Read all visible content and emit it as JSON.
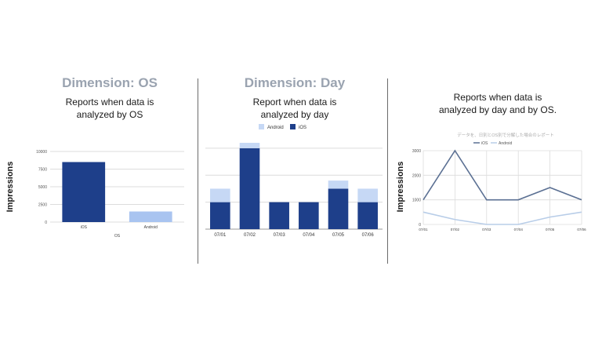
{
  "panels": [
    {
      "heading": "Dimension: OS",
      "subtitle_line1": "Reports when data is",
      "subtitle_line2": "analyzed by OS"
    },
    {
      "heading": "Dimension: Day",
      "subtitle_line1": "Report when data is",
      "subtitle_line2": "analyzed by day"
    },
    {
      "heading": "",
      "subtitle_line1": "Reports when data is",
      "subtitle_line2": "analyzed by day and by OS."
    }
  ],
  "y_axis_label": "Impressions",
  "colors": {
    "ios_dark": "#1e3f8a",
    "android_light": "#a9c4f0",
    "android_pale": "#c6d8f5",
    "line_ios": "#5b7093",
    "line_android": "#b8cde8",
    "grid": "#dcdcdc",
    "heading": "#9aa3b0"
  },
  "chart_data": [
    {
      "type": "bar",
      "title": "",
      "categories": [
        "iOS",
        "Android"
      ],
      "values": [
        8500,
        1500
      ],
      "bar_colors": [
        "#1e3f8a",
        "#a9c4f0"
      ],
      "xlabel": "OS",
      "ylabel": "Impressions",
      "yticks": [
        0,
        2500,
        5000,
        7500,
        10000
      ],
      "ylim": [
        0,
        10000
      ],
      "grid": true
    },
    {
      "type": "bar",
      "stacked": true,
      "categories": [
        "07/01",
        "07/02",
        "07/03",
        "07/04",
        "07/05",
        "07/06"
      ],
      "series": [
        {
          "name": "iOS",
          "values": [
            1000,
            3000,
            1000,
            1000,
            1500,
            1000
          ],
          "color": "#1e3f8a"
        },
        {
          "name": "Android",
          "values": [
            500,
            200,
            0,
            0,
            300,
            500
          ],
          "color": "#c6d8f5"
        }
      ],
      "legend": [
        "Android",
        "iOS"
      ],
      "legend_position": "top",
      "ylabel": "",
      "ylim": [
        0,
        3200
      ],
      "grid": true
    },
    {
      "type": "line",
      "title": "データを、日別とOS別で分解した場合のレポート",
      "categories": [
        "07/01",
        "07/02",
        "07/03",
        "07/04",
        "07/05",
        "07/06"
      ],
      "series": [
        {
          "name": "iOS",
          "values": [
            1000,
            3000,
            1000,
            1000,
            1500,
            1000
          ],
          "color": "#5b7093"
        },
        {
          "name": "Android",
          "values": [
            500,
            200,
            0,
            0,
            300,
            500
          ],
          "color": "#b8cde8"
        }
      ],
      "legend_position": "top",
      "ylabel": "Impressions",
      "yticks": [
        0,
        1000,
        2000,
        3000
      ],
      "ylim": [
        0,
        3000
      ],
      "grid": true
    }
  ]
}
